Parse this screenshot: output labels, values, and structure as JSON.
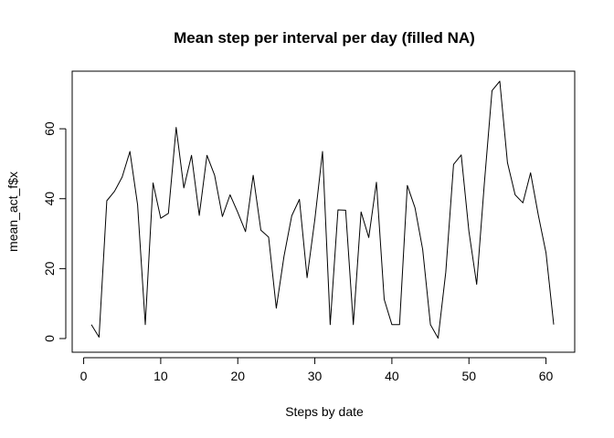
{
  "chart_data": {
    "type": "line",
    "title": "Mean step per interval per day (filled NA)",
    "xlabel": "Steps by date",
    "ylabel": "mean_act_f$x",
    "xlim": [
      1,
      61
    ],
    "ylim": [
      0,
      73.6
    ],
    "x_ticks": [
      0,
      10,
      20,
      30,
      40,
      50,
      60
    ],
    "y_ticks": [
      0,
      20,
      40,
      60
    ],
    "grid": false,
    "legend": "none",
    "series": [
      {
        "x": [
          1,
          2,
          3,
          4,
          5,
          6,
          7,
          8,
          9,
          10,
          11,
          12,
          13,
          14,
          15,
          16,
          17,
          18,
          19,
          20,
          21,
          22,
          23,
          24,
          25,
          26,
          27,
          28,
          29,
          30,
          31,
          32,
          33,
          34,
          35,
          36,
          37,
          38,
          39,
          40,
          41,
          42,
          43,
          44,
          45,
          46,
          47,
          48,
          49,
          50,
          51,
          52,
          53,
          54,
          55,
          56,
          57,
          58,
          59,
          60,
          61
        ],
        "y": [
          4.0,
          0.4,
          39.4,
          42.1,
          46.2,
          53.5,
          38.2,
          4.0,
          44.5,
          34.4,
          35.8,
          60.4,
          43.1,
          52.4,
          35.2,
          52.4,
          46.7,
          34.9,
          41.1,
          36.1,
          30.6,
          46.7,
          31.0,
          29.0,
          8.7,
          23.5,
          35.1,
          39.8,
          17.4,
          34.1,
          53.5,
          4.0,
          36.8,
          36.7,
          4.0,
          36.2,
          28.9,
          44.7,
          11.2,
          4.0,
          4.0,
          43.8,
          37.4,
          25.5,
          4.0,
          0.1,
          19.0,
          49.8,
          52.5,
          30.7,
          15.5,
          44.4,
          70.9,
          73.6,
          50.3,
          41.1,
          38.8,
          47.4,
          35.4,
          24.5,
          4.0
        ]
      }
    ]
  }
}
